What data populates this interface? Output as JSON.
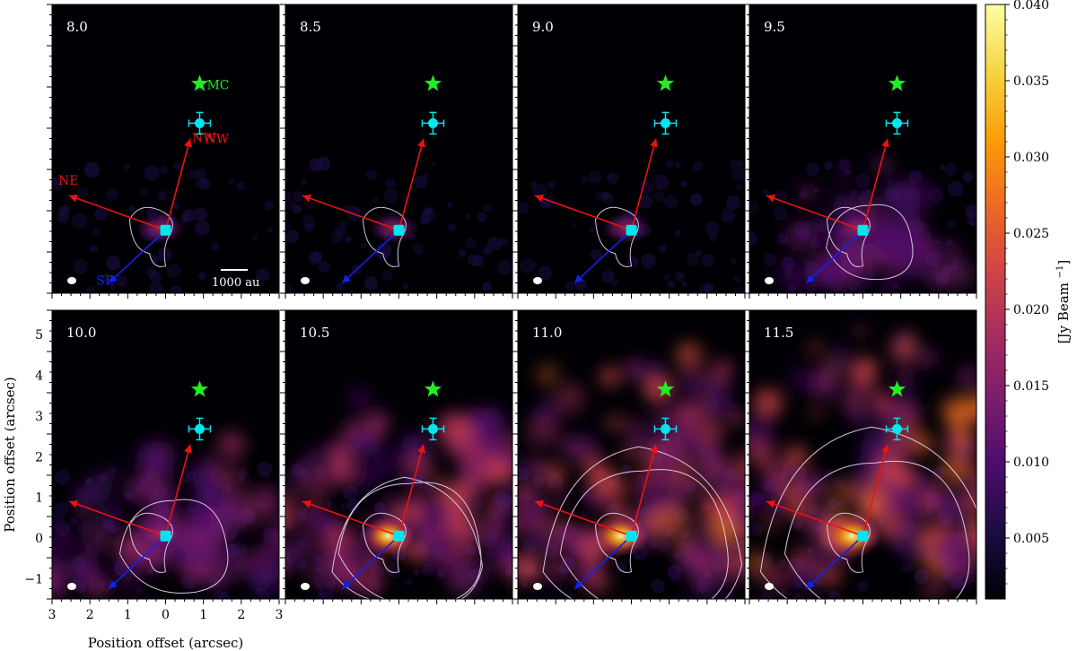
{
  "chart_data": {
    "type": "heatmap",
    "panels": [
      {
        "label": "8.0",
        "level": 0.0
      },
      {
        "label": "8.5",
        "level": 0.05
      },
      {
        "label": "9.0",
        "level": 0.08
      },
      {
        "label": "9.5",
        "level": 0.18
      },
      {
        "label": "10.0",
        "level": 0.35
      },
      {
        "label": "10.5",
        "level": 0.62
      },
      {
        "label": "11.0",
        "level": 0.82
      },
      {
        "label": "11.5",
        "level": 0.95
      }
    ],
    "xlim": [
      3,
      -3
    ],
    "ylim": [
      -1.5,
      5.6
    ],
    "x_ticks": [
      "3",
      "2",
      "1",
      "0",
      "1",
      "2",
      "3"
    ],
    "y_ticks": [
      "−1",
      "0",
      "1",
      "2",
      "3",
      "4",
      "5"
    ],
    "xlabel": "Position offset (arcsec)",
    "ylabel": "Position offset (arcsec)",
    "markers": {
      "MC": {
        "x": -0.9,
        "y": 3.65,
        "label": "MC",
        "color": "#22ee22"
      },
      "NW": {
        "x": -0.9,
        "y": 2.68,
        "label": "NW",
        "color": "#00e5ee"
      },
      "source": {
        "x": 0.0,
        "y": 0.05,
        "color": "#00e5ee"
      }
    },
    "arrows": [
      {
        "name": "NW",
        "label": "NW",
        "to": [
          -0.65,
          2.3
        ],
        "color": "#ee1111",
        "show_label_in_first_panel": true
      },
      {
        "name": "NE",
        "label": "NE",
        "to": [
          2.55,
          0.9
        ],
        "color": "#ee1111",
        "show_label_in_first_panel": true
      },
      {
        "name": "SE",
        "label": "SE",
        "to": [
          1.5,
          -1.25
        ],
        "color": "#1122ee",
        "show_label_in_first_panel": true
      }
    ],
    "scalebar_label": "1000 au",
    "colorbar": {
      "label": "[Jy Beam$^{-1}$]",
      "label_display": "[Jy Beam",
      "label_sup": "−1",
      "min": 0.001,
      "max": 0.04,
      "ticks": [
        "0.005",
        "0.010",
        "0.015",
        "0.020",
        "0.025",
        "0.030",
        "0.035",
        "0.040"
      ],
      "tick_values": [
        0.005,
        0.01,
        0.015,
        0.02,
        0.025,
        0.03,
        0.035,
        0.04
      ],
      "cmap": "inferno-like",
      "colors": [
        "#000004",
        "#1b0c41",
        "#4a0c6b",
        "#781c6d",
        "#a52c60",
        "#cf4446",
        "#ed6925",
        "#fb9b06",
        "#f7d13d",
        "#fcffa4"
      ]
    }
  }
}
